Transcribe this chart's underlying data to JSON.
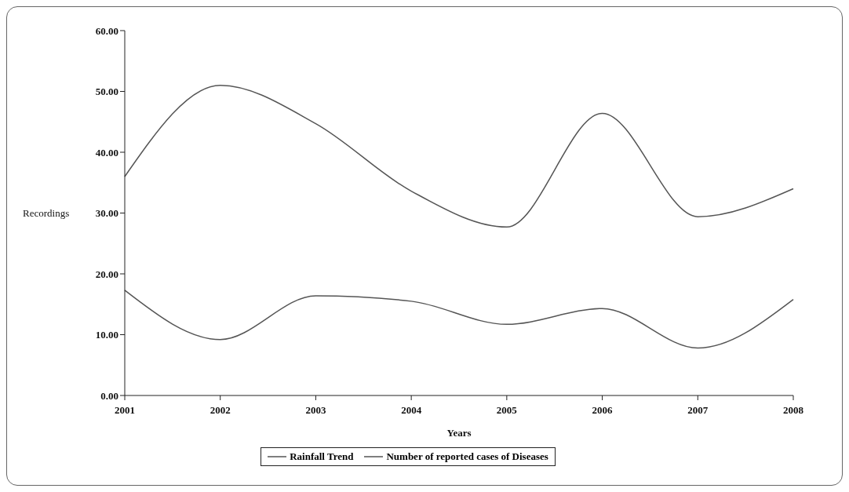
{
  "chart_data": {
    "type": "line",
    "xlabel": "Years",
    "ylabel": "Recordings",
    "categories": [
      "2001",
      "2002",
      "2003",
      "2004",
      "2005",
      "2006",
      "2007",
      "2008"
    ],
    "series": [
      {
        "name": "Rainfall Trend",
        "color": "#555555",
        "values": [
          36,
          51,
          44.7,
          33.6,
          27.7,
          46.4,
          29.4,
          34
        ]
      },
      {
        "name": "Number of reported cases of Diseases",
        "color": "#555555",
        "values": [
          17.3,
          9.2,
          16.4,
          15.5,
          11.7,
          14.3,
          7.8,
          15.8
        ]
      }
    ],
    "ylim": [
      0,
      60
    ],
    "yticks": [
      {
        "value": 0,
        "label": "0.00"
      },
      {
        "value": 10,
        "label": "10.00"
      },
      {
        "value": 20,
        "label": "20.00"
      },
      {
        "value": 30,
        "label": "30.00"
      },
      {
        "value": 40,
        "label": "40.00"
      },
      {
        "value": 50,
        "label": "50.00"
      },
      {
        "value": 60,
        "label": "60.00"
      }
    ],
    "grid": false,
    "legend": "bottom",
    "marker": "none",
    "line_style": "solid"
  }
}
